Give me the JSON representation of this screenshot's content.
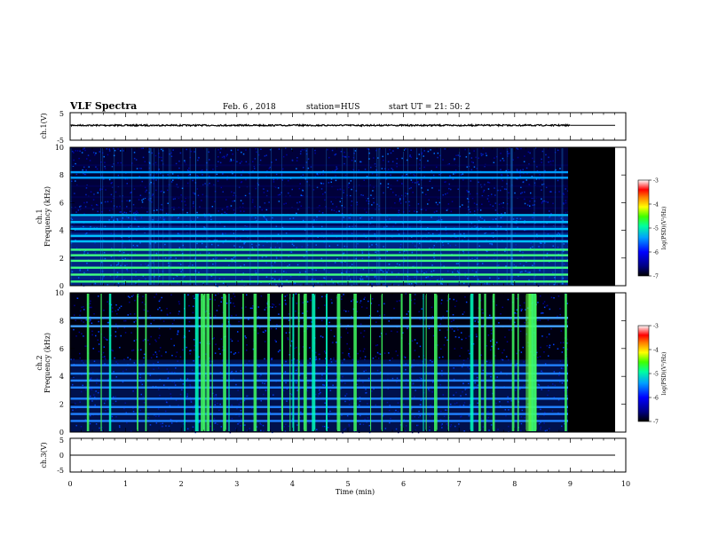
{
  "header": {
    "title": "VLF Spectra",
    "date": "Feb. 6 , 2018",
    "station": "station=HUS",
    "start": "start UT = 21: 50: 2"
  },
  "colors": {
    "background": "#ffffff",
    "axis": "#000000",
    "no_data": "#000000",
    "colormap": [
      "#000000",
      "#00004a",
      "#0000b0",
      "#0040ff",
      "#00b0ff",
      "#00ffc0",
      "#40ff40",
      "#c0ff00",
      "#ffff00",
      "#ff8000",
      "#ff0000",
      "#ffffff"
    ]
  },
  "chart_data": [
    {
      "type": "line",
      "name": "ch1-waveform",
      "ylabel": "ch.1(V)",
      "ylim": [
        -5,
        5
      ],
      "yticks": [
        "5",
        "-5"
      ],
      "xlim": [
        0,
        10
      ],
      "data_end_min": 9.0,
      "signal_level_v": 0.4,
      "signal_amplitude_v": 0.3,
      "flat_level_after_end_v": 0.4
    },
    {
      "type": "heatmap",
      "name": "ch1-spectrogram",
      "ylabel_1": "ch.1",
      "ylabel_2": "Frequency (kHz)",
      "ylim": [
        0,
        10
      ],
      "yticks": [
        "0",
        "2",
        "4",
        "6",
        "8",
        "10"
      ],
      "xlim": [
        0,
        10
      ],
      "data_end_min": 9.0,
      "no_data_end_min": 9.85,
      "colorbar": {
        "label": "log(PSD)(V²/Hz)",
        "range": [
          -7,
          -3
        ],
        "ticks": [
          "-3",
          "-4",
          "-5",
          "-6",
          "-7"
        ]
      },
      "bright_bands_khz": [
        0.3,
        0.8,
        1.3,
        1.8,
        2.2,
        2.6,
        3.2,
        3.6,
        4.1,
        4.6,
        5.1,
        7.8,
        8.2
      ],
      "dark_gaps_khz": [
        3.4,
        3.9,
        4.4,
        5.6,
        6.4,
        7.2,
        8.7
      ]
    },
    {
      "type": "heatmap",
      "name": "ch2-spectrogram",
      "ylabel_1": "ch.2",
      "ylabel_2": "Frequency (kHz)",
      "ylim": [
        0,
        10
      ],
      "yticks": [
        "0",
        "2",
        "4",
        "6",
        "8",
        "10"
      ],
      "xlim": [
        0,
        10
      ],
      "data_end_min": 9.0,
      "no_data_end_min": 9.85,
      "colorbar": {
        "label": "log(PSD)(V²/Hz)",
        "range": [
          -7,
          -3
        ],
        "ticks": [
          "-3",
          "-4",
          "-5",
          "-6",
          "-7"
        ]
      },
      "bright_bands_khz": [
        0.8,
        1.3,
        1.8,
        2.4,
        3.2,
        3.7,
        4.2,
        4.8,
        7.6,
        8.2
      ],
      "burst_times_min": [
        0.3,
        0.55,
        0.7,
        1.2,
        1.35,
        2.05,
        2.25,
        2.35,
        2.4,
        2.45,
        2.55,
        2.75,
        2.85,
        3.1,
        3.3,
        3.55,
        3.8,
        3.95,
        4.0,
        4.1,
        4.2,
        4.35,
        4.6,
        4.8,
        5.1,
        5.4,
        5.6,
        5.95,
        6.1,
        6.35,
        6.4,
        6.55,
        6.8,
        7.2,
        7.35,
        7.45,
        7.6,
        7.95,
        8.05,
        8.25,
        8.3,
        8.35,
        8.9
      ]
    },
    {
      "type": "line",
      "name": "ch3-waveform",
      "ylabel": "ch.3(V)",
      "ylim": [
        -5,
        5
      ],
      "yticks": [
        "5",
        "0",
        "-5"
      ],
      "xlim": [
        0,
        10
      ],
      "signal_level_v": 0.0,
      "xlabel": "Time (min)",
      "xticks": [
        "0",
        "1",
        "2",
        "3",
        "4",
        "5",
        "6",
        "7",
        "8",
        "9",
        "10"
      ]
    }
  ]
}
